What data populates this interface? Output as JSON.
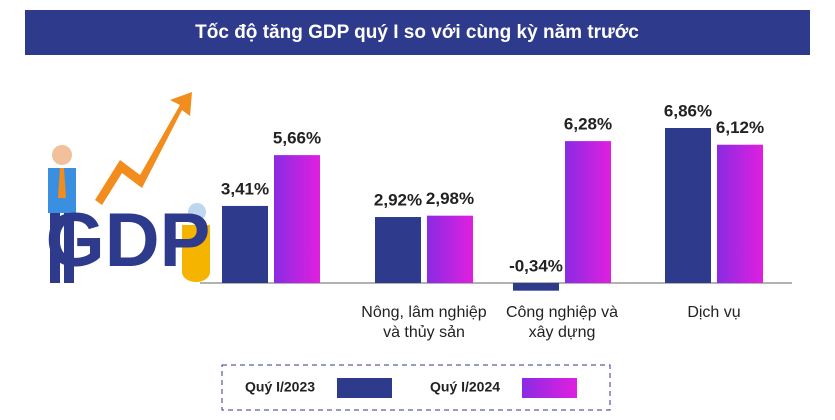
{
  "chart_data": {
    "type": "bar",
    "title": "Tốc độ tăng GDP quý I so với cùng kỳ năm trước",
    "annotation": "GDP",
    "categories": [
      null,
      "Nông, lâm nghiệp và thủy sản",
      "Công nghiệp và xây dựng",
      "Dịch vụ"
    ],
    "series": [
      {
        "name": "Quý I/2023",
        "color": "#2e3a8c",
        "values": [
          3.41,
          2.92,
          -0.34,
          6.86
        ],
        "value_labels": [
          "3,41%",
          "2,92%",
          "-0,34%",
          "6,86%"
        ]
      },
      {
        "name": "Quý I/2024",
        "color": "#c21fe0",
        "values": [
          5.66,
          2.98,
          6.28,
          6.12
        ],
        "value_labels": [
          "5,66%",
          "2,98%",
          "6,28%",
          "6,12%"
        ]
      }
    ]
  }
}
